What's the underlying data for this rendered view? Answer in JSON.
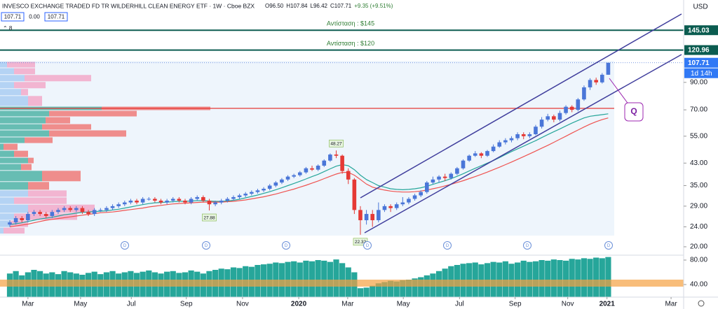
{
  "chart_data": {
    "type": "candlestick",
    "title": "INVESCO EXCHANGE TRADED FD TR WILDERHILL CLEAN ENERGY ETF · 1W · Cboe BZX",
    "ohlc": [
      "O96.50",
      "H107.84",
      "L96.42",
      "C107.71",
      "+9.35 (+9.51%)"
    ],
    "quote_boxes": [
      "107.71",
      "0.00",
      "107.71"
    ],
    "indicator_count": "⌃ 8",
    "currency": "USD",
    "log_scale": true,
    "xlim": [
      -1.624,
      111.48
    ],
    "xticks": [
      {
        "value": 3.0,
        "label": "Mar"
      },
      {
        "value": 11.7,
        "label": "May"
      },
      {
        "value": 20.1,
        "label": "Jul"
      },
      {
        "value": 29.2,
        "label": "Sep"
      },
      {
        "value": 38.5,
        "label": "Nov"
      },
      {
        "value": 47.8,
        "label": "2020"
      },
      {
        "value": 55.9,
        "label": "Mar"
      },
      {
        "value": 65.1,
        "label": "May"
      },
      {
        "value": 74.4,
        "label": "Jul"
      },
      {
        "value": 83.6,
        "label": "Sep"
      },
      {
        "value": 92.3,
        "label": "Nov"
      },
      {
        "value": 98.8,
        "label": "2021"
      },
      {
        "value": 109.4,
        "label": "Mar"
      }
    ],
    "ylim": [
      18.52,
      191.2
    ],
    "yticks": [
      {
        "value": 20,
        "label": "20.00"
      },
      {
        "value": 24,
        "label": "24.00"
      },
      {
        "value": 29,
        "label": "29.00"
      },
      {
        "value": 35,
        "label": "35.00"
      },
      {
        "value": 43,
        "label": "43.00"
      },
      {
        "value": 55,
        "label": "55.00"
      },
      {
        "value": 70,
        "label": "70.00"
      },
      {
        "value": 90,
        "label": "90.00"
      }
    ],
    "price_lines": [
      {
        "value": 145.03,
        "label": "145.03",
        "annotation": "Αντίσταση : $145"
      },
      {
        "value": 120.96,
        "label": "120.96",
        "annotation": "Αντίσταση : $120"
      }
    ],
    "last_price": {
      "value": 107.71,
      "label": "107.71"
    },
    "countdown": "1d 14h",
    "point_labels": [
      {
        "index": 54,
        "field": "high",
        "label": "48.27"
      },
      {
        "index": 33,
        "field": "low",
        "label": "27.88"
      },
      {
        "index": 58,
        "field": "low",
        "label": "22.32"
      }
    ],
    "drawing_label": "Q",
    "up_color": "#4a76d8",
    "down_color": "#e53935",
    "open": [
      24.5,
      25,
      26,
      25.5,
      27,
      27.5,
      27,
      26.5,
      27.5,
      28,
      28.5,
      28,
      28.5,
      27.5,
      27,
      28,
      28,
      28.5,
      29,
      29.5,
      30,
      30.5,
      30,
      31,
      31,
      30.5,
      30,
      30.5,
      31,
      30.5,
      30,
      31,
      31.5,
      30.5,
      29.5,
      30,
      30.5,
      31,
      31.5,
      32,
      32.5,
      33,
      33.5,
      34,
      35,
      36,
      37,
      38,
      38.5,
      39.5,
      41,
      40.5,
      42,
      44,
      46.5,
      46,
      40,
      37,
      28,
      25.5,
      27,
      25.5,
      28,
      29,
      28.5,
      29.5,
      30,
      31,
      32,
      33,
      36,
      37,
      38,
      37.5,
      39,
      41,
      44,
      46,
      47,
      46,
      48,
      50,
      52,
      53,
      54,
      56,
      55,
      56,
      60,
      64,
      66,
      64,
      68,
      72,
      70,
      77,
      86,
      92,
      90,
      96.5
    ],
    "high": [
      25.5,
      26.5,
      26.5,
      27.5,
      28,
      28,
      27.5,
      28,
      28.5,
      29,
      29,
      29,
      29,
      28,
      28.5,
      28.5,
      29,
      29.5,
      30,
      30.5,
      31,
      31,
      31.5,
      31.5,
      31.5,
      31,
      31,
      31.5,
      31.5,
      31,
      31.5,
      32,
      32,
      31,
      30.5,
      31,
      31.5,
      32,
      32.5,
      33,
      33.5,
      34,
      34.5,
      35.5,
      36.5,
      37.5,
      38.5,
      39,
      40,
      41.5,
      42,
      42.5,
      44.5,
      47,
      48.27,
      46.5,
      41,
      37.5,
      29,
      28,
      28,
      30,
      29.5,
      29.5,
      30,
      31.5,
      31.5,
      32.5,
      33.5,
      36.5,
      38,
      38.5,
      39,
      39.5,
      41.5,
      44.5,
      46.5,
      48,
      47.5,
      48.5,
      51,
      53,
      54,
      55,
      57,
      57,
      57,
      61,
      65.5,
      67.5,
      67,
      69.5,
      73,
      73,
      78,
      87.5,
      93.5,
      94,
      98,
      107.84
    ],
    "low": [
      24,
      24.5,
      25,
      25,
      26.5,
      26.5,
      26,
      26,
      27,
      27.5,
      27.5,
      27.5,
      27,
      26.5,
      26.5,
      27.5,
      27.5,
      28,
      28.5,
      29,
      29.5,
      29.5,
      29.5,
      30.5,
      30,
      29.5,
      29.5,
      30,
      30,
      29.5,
      29.5,
      30.5,
      30,
      27.88,
      29,
      29.5,
      30,
      30.5,
      31,
      31.5,
      32,
      32.5,
      33,
      33.5,
      34.5,
      35.5,
      36.5,
      37.5,
      38,
      39,
      40,
      40,
      41.5,
      43.5,
      45,
      39,
      35.5,
      27,
      22.32,
      24.5,
      24,
      25,
      27.5,
      27.5,
      28,
      29,
      29.5,
      30.5,
      31.5,
      32.5,
      35.5,
      36,
      36.5,
      37,
      38.5,
      40.5,
      43.5,
      45.5,
      45,
      45.5,
      47.5,
      49.5,
      51,
      52,
      53,
      53.5,
      54,
      55.5,
      59,
      63,
      62.5,
      63,
      67,
      68.5,
      69,
      76,
      84,
      88,
      89,
      96.42
    ],
    "close": [
      25,
      26,
      25.5,
      27,
      27.5,
      27,
      26.5,
      27.5,
      28,
      28.5,
      28,
      28.5,
      27.5,
      27,
      28,
      28,
      28.5,
      29,
      29.5,
      30,
      30.5,
      30,
      31,
      31,
      30.5,
      30,
      30.5,
      31,
      30.5,
      30,
      31,
      31.5,
      30.5,
      29.5,
      30,
      30.5,
      31,
      31.5,
      32,
      32.5,
      33,
      33.5,
      34,
      35,
      36,
      37,
      38,
      38.5,
      39.5,
      41,
      40.5,
      42,
      44,
      46.5,
      46,
      40,
      37,
      28,
      25.5,
      27,
      25.5,
      28,
      29,
      28.5,
      29.5,
      30,
      31,
      32,
      33,
      36,
      37,
      38,
      37.5,
      39,
      41,
      44,
      46,
      47,
      46,
      48,
      50,
      52,
      53,
      54,
      56,
      55,
      56,
      60,
      64,
      66,
      64,
      68,
      72,
      70,
      77,
      86,
      92,
      90,
      96.5,
      107.71
    ],
    "ma_lines": [
      {
        "color": "#26a69a",
        "values": [
          24.5,
          24.7,
          24.9,
          25.2,
          25.5,
          25.8,
          26,
          26.2,
          26.5,
          26.8,
          27,
          27.2,
          27.4,
          27.5,
          27.6,
          27.7,
          27.8,
          28,
          28.2,
          28.5,
          28.8,
          29.1,
          29.4,
          29.7,
          29.9,
          30,
          30.1,
          30.2,
          30.3,
          30.3,
          30.4,
          30.5,
          30.5,
          30.4,
          30.3,
          30.3,
          30.4,
          30.6,
          30.9,
          31.3,
          31.7,
          32.1,
          32.6,
          33.1,
          33.7,
          34.3,
          35,
          35.7,
          36.4,
          37.2,
          38,
          38.8,
          39.8,
          40.8,
          41.8,
          42.4,
          42,
          40.5,
          38.5,
          37,
          36,
          35,
          34.5,
          34,
          33.8,
          33.7,
          33.8,
          34,
          34.3,
          34.8,
          35.4,
          36,
          36.6,
          37.3,
          38.1,
          39,
          40,
          41,
          42,
          43,
          44,
          45.2,
          46.5,
          47.8,
          49,
          50.2,
          51.5,
          52.8,
          54.3,
          55.8,
          57.3,
          58.8,
          60.4,
          62,
          63.5,
          65,
          66,
          66.5,
          67,
          67.5
        ]
      },
      {
        "color": "#ef5350",
        "values": [
          24,
          24.2,
          24.4,
          24.6,
          24.9,
          25.2,
          25.5,
          25.7,
          25.9,
          26.1,
          26.3,
          26.5,
          26.7,
          26.9,
          27.1,
          27.3,
          27.4,
          27.5,
          27.7,
          27.9,
          28.1,
          28.3,
          28.5,
          28.8,
          29,
          29.2,
          29.4,
          29.6,
          29.7,
          29.8,
          29.9,
          30,
          30.1,
          30.1,
          30.1,
          30.1,
          30.2,
          30.3,
          30.5,
          30.7,
          31,
          31.3,
          31.6,
          32,
          32.4,
          32.9,
          33.4,
          33.9,
          34.5,
          35.1,
          35.8,
          36.5,
          37.3,
          38.1,
          38.9,
          39.5,
          39.5,
          38.5,
          37,
          35.5,
          34.5,
          34,
          33.6,
          33.3,
          33.1,
          33,
          33,
          33.1,
          33.3,
          33.6,
          34,
          34.4,
          34.9,
          35.4,
          36,
          36.6,
          37.3,
          38,
          38.8,
          39.6,
          40.5,
          41.4,
          42.4,
          43.4,
          44.5,
          45.6,
          46.8,
          48,
          49.3,
          50.6,
          52,
          53.5,
          55,
          56.6,
          58.2,
          59.8,
          61.4,
          62.8,
          64,
          65
        ]
      }
    ],
    "volume": {
      "color": "#26a69a",
      "values": [
        58,
        62,
        55,
        60,
        64,
        62,
        58,
        60,
        57,
        62,
        60,
        58,
        56,
        59,
        61,
        57,
        60,
        62,
        58,
        60,
        62,
        59,
        61,
        63,
        60,
        58,
        61,
        62,
        59,
        60,
        63,
        61,
        58,
        62,
        64,
        66,
        65,
        68,
        67,
        70,
        69,
        72,
        73,
        74,
        76,
        75,
        77,
        78,
        76,
        79,
        78,
        80,
        79,
        77,
        81,
        75,
        68,
        60,
        34,
        35,
        38,
        42,
        44,
        46,
        45,
        47,
        48,
        50,
        52,
        55,
        58,
        62,
        66,
        70,
        72,
        74,
        75,
        76,
        73,
        75,
        77,
        76,
        78,
        74,
        76,
        79,
        77,
        78,
        80,
        79,
        81,
        80,
        79,
        82,
        81,
        83,
        82,
        84,
        83,
        85
      ]
    },
    "y2lim": [
      19.43,
      88
    ],
    "y2ticks": [
      {
        "value": 80,
        "label": "80.00"
      },
      {
        "value": 40,
        "label": "40.00"
      }
    ],
    "volume_profile": {
      "levels": [
        108.9,
        102.8,
        96.6,
        90.6,
        85,
        79.7,
        72.3,
        69.6,
        65.7,
        61.6,
        58.2,
        54.6,
        51.5,
        48.3,
        45.3,
        42.8,
        40.2,
        36.3,
        33.6,
        31.5,
        29.5,
        27.2,
        25.5,
        23.9,
        22.5
      ],
      "up": [
        10,
        20,
        35,
        20,
        30,
        40,
        145,
        70,
        65,
        60,
        70,
        35,
        5,
        20,
        40,
        30,
        60,
        40,
        40,
        20,
        40,
        20,
        15,
        5
      ],
      "down": [
        40,
        30,
        95,
        45,
        10,
        20,
        155,
        125,
        35,
        70,
        110,
        40,
        20,
        20,
        8,
        15,
        55,
        30,
        55,
        75,
        95,
        90,
        25,
        30
      ],
      "value_area": [
        33.6,
        72.3
      ]
    }
  }
}
